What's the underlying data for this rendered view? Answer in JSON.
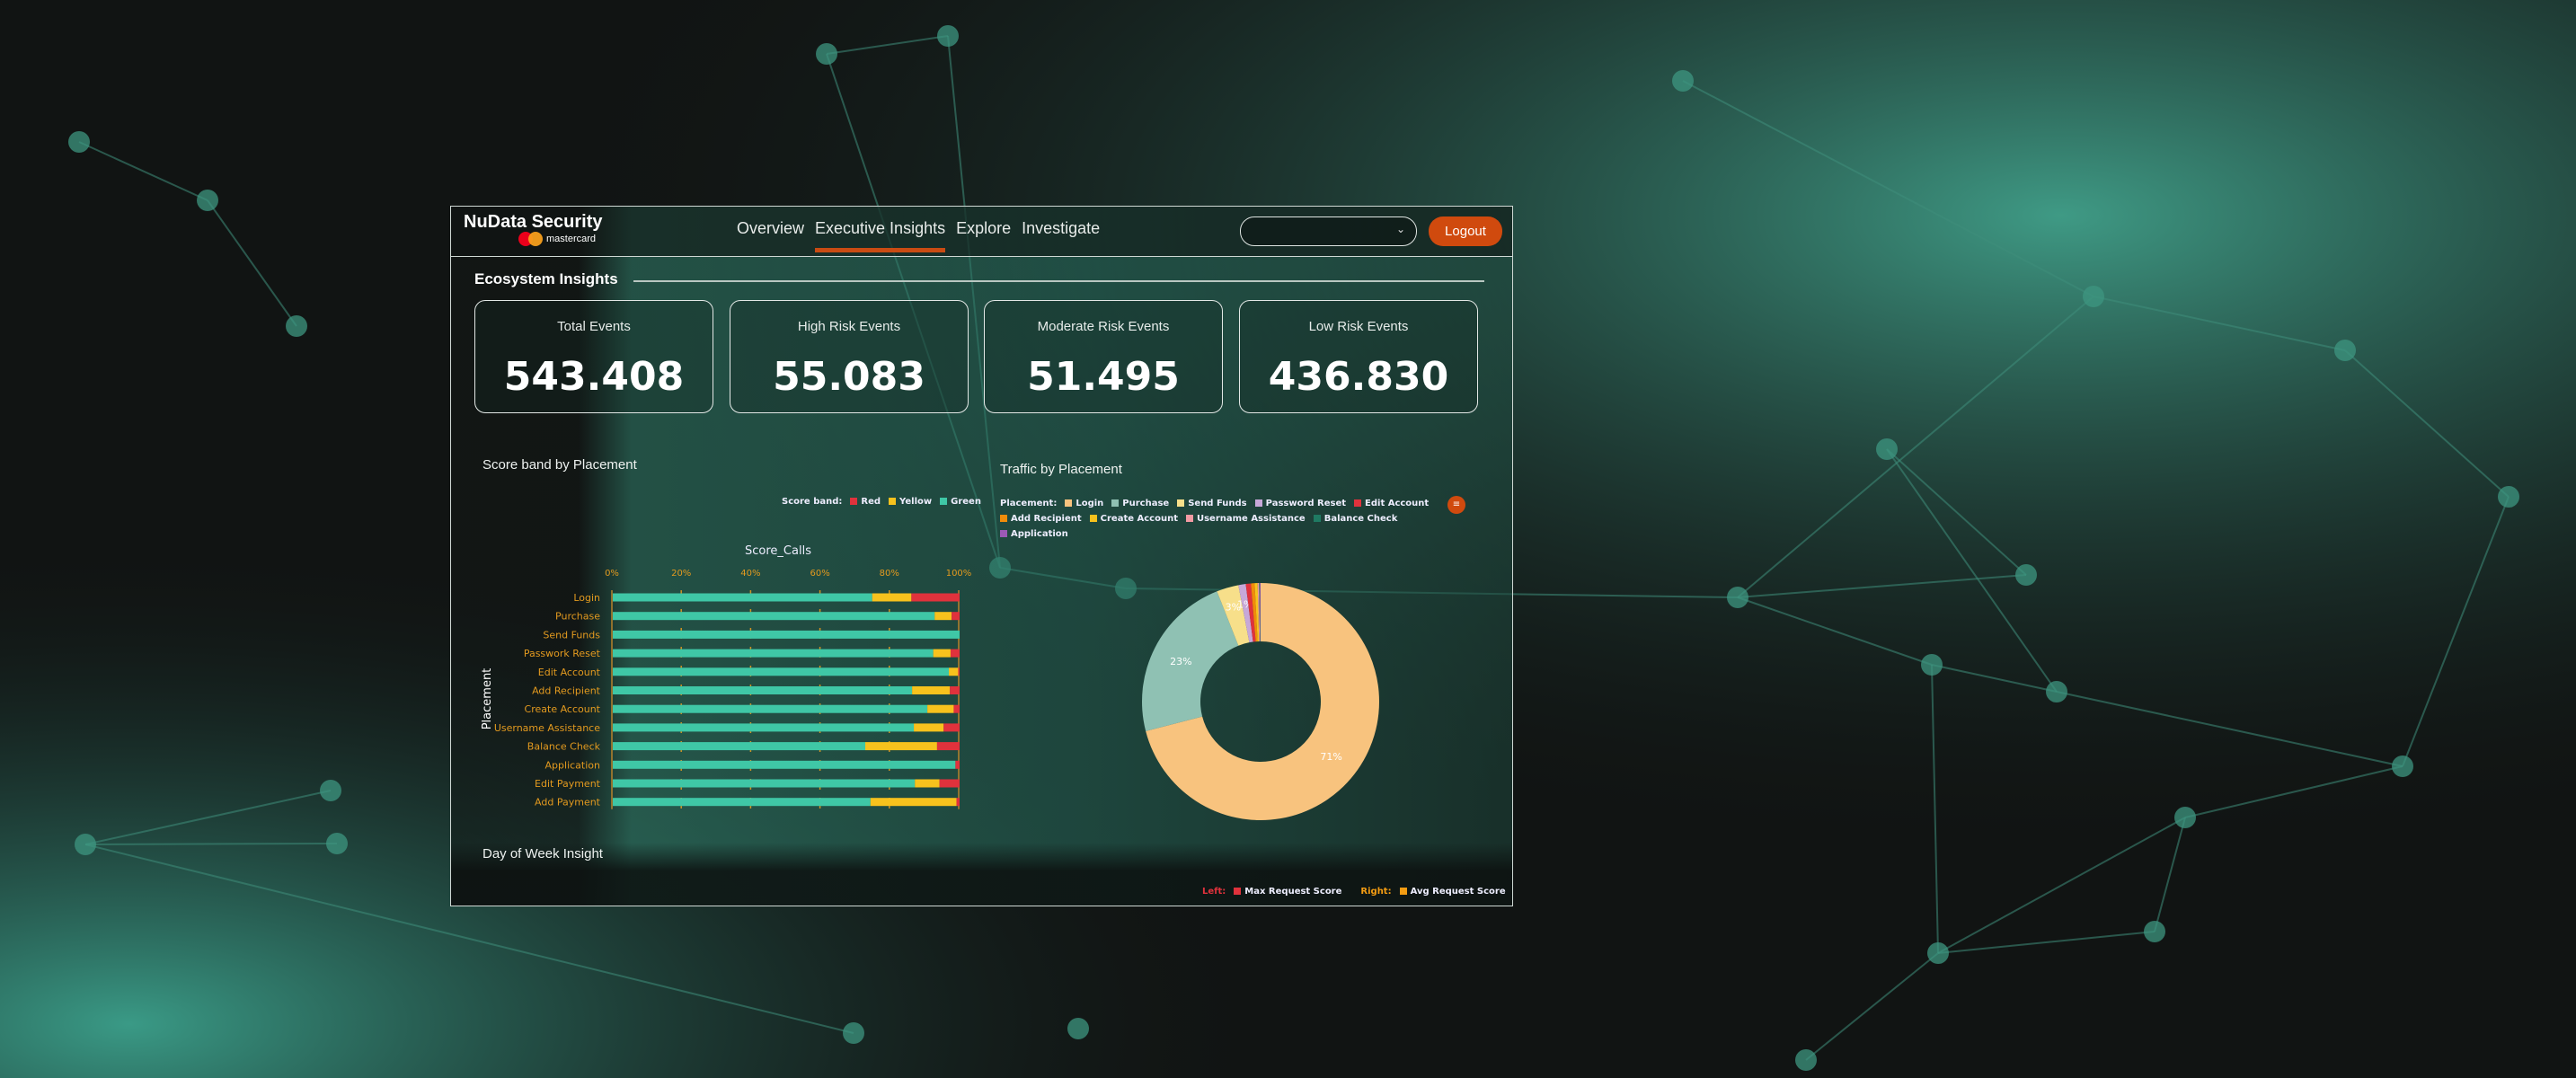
{
  "header": {
    "brand": "NuData Security",
    "sub_brand": "mastercard",
    "nav": [
      {
        "label": "Overview"
      },
      {
        "label": "Executive Insights",
        "active": true
      },
      {
        "label": "Explore"
      },
      {
        "label": "Investigate"
      }
    ],
    "dropdown_value": "",
    "logout_label": "Logout"
  },
  "section": {
    "title": "Ecosystem Insights"
  },
  "cards": [
    {
      "label": "Total Events",
      "value": "543.408"
    },
    {
      "label": "High Risk Events",
      "value": "55.083"
    },
    {
      "label": "Moderate Risk Events",
      "value": "51.495"
    },
    {
      "label": "Low Risk Events",
      "value": "436.830"
    }
  ],
  "score_band": {
    "title": "Score band by Placement",
    "legend_title": "Score band:",
    "legend": [
      {
        "name": "Red",
        "color": "#e0323c"
      },
      {
        "name": "Yellow",
        "color": "#f7c21d"
      },
      {
        "name": "Green",
        "color": "#3fc7a6"
      }
    ]
  },
  "traffic": {
    "title": "Traffic by Placement",
    "legend_title": "Placement:",
    "menu_icon": "list-icon"
  },
  "day_of_week": {
    "title": "Day of Week Insight",
    "legend": {
      "left_label": "Left:",
      "left_series": "Max Request Score",
      "left_color": "#e0323c",
      "right_label": "Right:",
      "right_series": "Avg Request Score",
      "right_color": "#f39c12"
    }
  },
  "chart_data": [
    {
      "type": "bar",
      "stacked": true,
      "orientation": "horizontal",
      "title": "Score_Calls",
      "xlabel": "Score_Calls",
      "ylabel": "Placement",
      "xlim": [
        0,
        100
      ],
      "xticks": [
        "0%",
        "20%",
        "40%",
        "60%",
        "80%",
        "100%"
      ],
      "categories": [
        "Login",
        "Purchase",
        "Send Funds",
        "Passwork Reset",
        "Edit Account",
        "Add Recipient",
        "Create Account",
        "Username Assistance",
        "Balance Check",
        "Application",
        "Edit Payment",
        "Add Payment"
      ],
      "series": [
        {
          "name": "Green",
          "color": "#3fc7a6",
          "values": [
            74.8,
            92.8,
            100,
            92.4,
            96.9,
            86.3,
            90.7,
            86.8,
            72.8,
            98.8,
            87.1,
            74.3
          ]
        },
        {
          "name": "Yellow",
          "color": "#f7c21d",
          "values": [
            11.3,
            4.9,
            0,
            5.0,
            2.7,
            10.9,
            7.6,
            8.6,
            20.7,
            0,
            7.1,
            24.8
          ]
        },
        {
          "name": "Red",
          "color": "#e0323c",
          "values": [
            13.9,
            2.3,
            0,
            2.6,
            0.4,
            2.8,
            1.7,
            4.6,
            6.5,
            1.2,
            5.8,
            0.9
          ]
        }
      ]
    },
    {
      "type": "pie",
      "donut": true,
      "slices": [
        {
          "name": "Login",
          "value": 71,
          "color": "#f8c37e",
          "label": "71%"
        },
        {
          "name": "Purchase",
          "value": 23,
          "color": "#8fc1b3",
          "label": "23%"
        },
        {
          "name": "Send Funds",
          "value": 3,
          "color": "#f7df8a",
          "label": "3%"
        },
        {
          "name": "Password Reset",
          "value": 1,
          "color": "#c7a8d8",
          "label": "1%"
        },
        {
          "name": "Edit Account",
          "value": 0.7,
          "color": "#e0323c",
          "label": ""
        },
        {
          "name": "Add Recipient",
          "value": 0.5,
          "color": "#f08c0a",
          "label": ""
        },
        {
          "name": "Create Account",
          "value": 0.4,
          "color": "#f7c21d",
          "label": ""
        },
        {
          "name": "Username Assistance",
          "value": 0.2,
          "color": "#f29aa3",
          "label": ""
        },
        {
          "name": "Balance Check",
          "value": 0.1,
          "color": "#1f7a62",
          "label": ""
        },
        {
          "name": "Application",
          "value": 0.1,
          "color": "#9b59b6",
          "label": ""
        }
      ]
    }
  ]
}
